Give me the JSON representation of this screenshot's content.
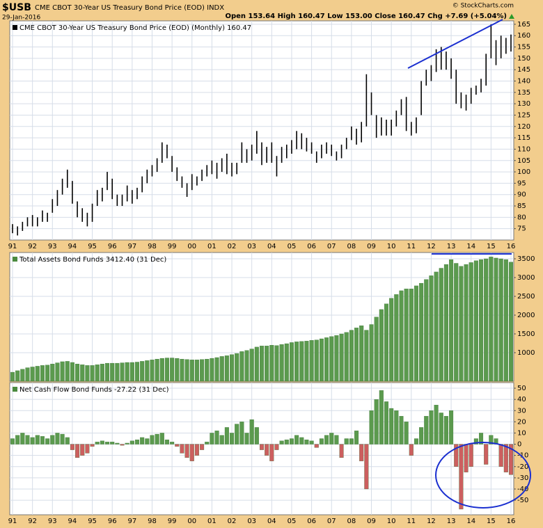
{
  "header": {
    "symbol": "$USB",
    "description": "CME CBOT 30-Year US Treasury Bond Price (EOD) INDX",
    "date": "29-Jan-2016",
    "quote": "Open 153.64 High 160.47 Low 153.00 Close 160.47 Chg +7.69 (+5.04%)",
    "credit": "© StockCharts.com"
  },
  "chart_data": [
    {
      "type": "ohlc",
      "title": "CME CBOT 30-Year US Treasury Bond Price (EOD) (Monthly) 160.47",
      "color": "#000000",
      "x": [
        1991,
        1991.25,
        1991.5,
        1991.75,
        1992,
        1992.25,
        1992.5,
        1992.75,
        1993,
        1993.25,
        1993.5,
        1993.75,
        1994,
        1994.25,
        1994.5,
        1994.75,
        1995,
        1995.25,
        1995.5,
        1995.75,
        1996,
        1996.25,
        1996.5,
        1996.75,
        1997,
        1997.25,
        1997.5,
        1997.75,
        1998,
        1998.25,
        1998.5,
        1998.75,
        1999,
        1999.25,
        1999.5,
        1999.75,
        2000,
        2000.25,
        2000.5,
        2000.75,
        2001,
        2001.25,
        2001.5,
        2001.75,
        2002,
        2002.25,
        2002.5,
        2002.75,
        2003,
        2003.25,
        2003.5,
        2003.75,
        2004,
        2004.25,
        2004.5,
        2004.75,
        2005,
        2005.25,
        2005.5,
        2005.75,
        2006,
        2006.25,
        2006.5,
        2006.75,
        2007,
        2007.25,
        2007.5,
        2007.75,
        2008,
        2008.25,
        2008.5,
        2008.75,
        2009,
        2009.25,
        2009.5,
        2009.75,
        2010,
        2010.25,
        2010.5,
        2010.75,
        2011,
        2011.25,
        2011.5,
        2011.75,
        2012,
        2012.25,
        2012.5,
        2012.75,
        2013,
        2013.25,
        2013.5,
        2013.75,
        2014,
        2014.25,
        2014.5,
        2014.75,
        2015,
        2015.25,
        2015.5,
        2015.75,
        2016
      ],
      "low": [
        73,
        72,
        74,
        76,
        76,
        76,
        78,
        78,
        82,
        85,
        90,
        93,
        86,
        80,
        78,
        76,
        78,
        85,
        87,
        92,
        88,
        85,
        85,
        87,
        86,
        88,
        91,
        95,
        98,
        100,
        104,
        106,
        100,
        96,
        93,
        89,
        92,
        94,
        96,
        98,
        99,
        97,
        100,
        99,
        98,
        99,
        104,
        104,
        105,
        108,
        103,
        104,
        104,
        98,
        104,
        106,
        108,
        110,
        110,
        109,
        108,
        104,
        106,
        108,
        107,
        105,
        106,
        110,
        114,
        112,
        113,
        120,
        125,
        115,
        116,
        116,
        116,
        120,
        125,
        118,
        116,
        117,
        125,
        138,
        140,
        144,
        145,
        145,
        141,
        130,
        128,
        127,
        130,
        134,
        135,
        138,
        150,
        147,
        150,
        152,
        153
      ],
      "high": [
        77,
        76,
        78,
        80,
        81,
        80,
        83,
        82,
        88,
        92,
        97,
        101,
        96,
        87,
        84,
        82,
        86,
        92,
        93,
        100,
        97,
        90,
        90,
        94,
        92,
        93,
        98,
        101,
        103,
        106,
        113,
        112,
        107,
        102,
        98,
        95,
        99,
        98,
        101,
        103,
        105,
        104,
        106,
        108,
        104,
        104,
        113,
        110,
        112,
        118,
        113,
        111,
        113,
        107,
        111,
        112,
        114,
        118,
        117,
        115,
        113,
        109,
        112,
        113,
        112,
        109,
        112,
        115,
        120,
        119,
        122,
        143,
        135,
        125,
        124,
        123,
        123,
        127,
        132,
        133,
        122,
        124,
        140,
        145,
        147,
        154,
        155,
        153,
        150,
        145,
        135,
        134,
        137,
        138,
        141,
        152,
        165,
        158,
        160,
        159,
        160.47
      ],
      "xlim": [
        1990.86,
        2016.14
      ],
      "ylim": [
        70,
        166.5
      ],
      "yticks": [
        75,
        80,
        85,
        90,
        95,
        100,
        105,
        110,
        115,
        120,
        125,
        130,
        135,
        140,
        145,
        150,
        155,
        160,
        165
      ],
      "xticks": [
        {
          "value": 1991,
          "label": "91"
        },
        {
          "value": 1992,
          "label": "92"
        },
        {
          "value": 1993,
          "label": "93"
        },
        {
          "value": 1994,
          "label": "94"
        },
        {
          "value": 1995,
          "label": "95"
        },
        {
          "value": 1996,
          "label": "96"
        },
        {
          "value": 1997,
          "label": "97"
        },
        {
          "value": 1998,
          "label": "98"
        },
        {
          "value": 1999,
          "label": "99"
        },
        {
          "value": 2000,
          "label": "00"
        },
        {
          "value": 2001,
          "label": "01"
        },
        {
          "value": 2002,
          "label": "02"
        },
        {
          "value": 2003,
          "label": "03"
        },
        {
          "value": 2004,
          "label": "04"
        },
        {
          "value": 2005,
          "label": "05"
        },
        {
          "value": 2006,
          "label": "06"
        },
        {
          "value": 2007,
          "label": "07"
        },
        {
          "value": 2008,
          "label": "08"
        },
        {
          "value": 2009,
          "label": "09"
        },
        {
          "value": 2010,
          "label": "10"
        },
        {
          "value": 2011,
          "label": "11"
        },
        {
          "value": 2012,
          "label": "12"
        },
        {
          "value": 2013,
          "label": "13"
        },
        {
          "value": 2014,
          "label": "14"
        },
        {
          "value": 2015,
          "label": "15"
        },
        {
          "value": 2016,
          "label": "16"
        }
      ]
    },
    {
      "type": "bar",
      "title": "Total Assets Bond Funds 3412.40 (31 Dec)",
      "color": "#5b9a4e",
      "x": [
        1991,
        1991.25,
        1991.5,
        1991.75,
        1992,
        1992.25,
        1992.5,
        1992.75,
        1993,
        1993.25,
        1993.5,
        1993.75,
        1994,
        1994.25,
        1994.5,
        1994.75,
        1995,
        1995.25,
        1995.5,
        1995.75,
        1996,
        1996.25,
        1996.5,
        1996.75,
        1997,
        1997.25,
        1997.5,
        1997.75,
        1998,
        1998.25,
        1998.5,
        1998.75,
        1999,
        1999.25,
        1999.5,
        1999.75,
        2000,
        2000.25,
        2000.5,
        2000.75,
        2001,
        2001.25,
        2001.5,
        2001.75,
        2002,
        2002.25,
        2002.5,
        2002.75,
        2003,
        2003.25,
        2003.5,
        2003.75,
        2004,
        2004.25,
        2004.5,
        2004.75,
        2005,
        2005.25,
        2005.5,
        2005.75,
        2006,
        2006.25,
        2006.5,
        2006.75,
        2007,
        2007.25,
        2007.5,
        2007.75,
        2008,
        2008.25,
        2008.5,
        2008.75,
        2009,
        2009.25,
        2009.5,
        2009.75,
        2010,
        2010.25,
        2010.5,
        2010.75,
        2011,
        2011.25,
        2011.5,
        2011.75,
        2012,
        2012.25,
        2012.5,
        2012.75,
        2013,
        2013.25,
        2013.5,
        2013.75,
        2014,
        2014.25,
        2014.5,
        2014.75,
        2015,
        2015.25,
        2015.5,
        2015.75,
        2016
      ],
      "values": [
        480,
        520,
        560,
        600,
        620,
        640,
        660,
        670,
        700,
        730,
        760,
        770,
        740,
        700,
        680,
        660,
        660,
        680,
        700,
        720,
        720,
        720,
        730,
        740,
        740,
        750,
        770,
        790,
        810,
        830,
        850,
        860,
        860,
        850,
        830,
        820,
        810,
        810,
        820,
        830,
        850,
        870,
        900,
        920,
        950,
        980,
        1030,
        1060,
        1100,
        1150,
        1180,
        1180,
        1200,
        1190,
        1220,
        1240,
        1270,
        1290,
        1300,
        1310,
        1330,
        1340,
        1370,
        1400,
        1430,
        1460,
        1500,
        1540,
        1600,
        1660,
        1720,
        1600,
        1750,
        1950,
        2150,
        2300,
        2450,
        2550,
        2650,
        2700,
        2700,
        2780,
        2850,
        2950,
        3050,
        3150,
        3250,
        3350,
        3480,
        3380,
        3300,
        3350,
        3400,
        3450,
        3480,
        3500,
        3550,
        3520,
        3500,
        3480,
        3412.4
      ],
      "xlim": [
        1990.86,
        2016.14
      ],
      "ylim": [
        240,
        3667
      ],
      "yticks": [
        1000,
        1500,
        2000,
        2500,
        3000,
        3500
      ]
    },
    {
      "type": "bar",
      "title": "Net Cash Flow Bond Funds -27.22 (31 Dec)",
      "color": "#5b9a4e",
      "negative_color": "#cc5f5f",
      "x": [
        1991,
        1991.25,
        1991.5,
        1991.75,
        1992,
        1992.25,
        1992.5,
        1992.75,
        1993,
        1993.25,
        1993.5,
        1993.75,
        1994,
        1994.25,
        1994.5,
        1994.75,
        1995,
        1995.25,
        1995.5,
        1995.75,
        1996,
        1996.25,
        1996.5,
        1996.75,
        1997,
        1997.25,
        1997.5,
        1997.75,
        1998,
        1998.25,
        1998.5,
        1998.75,
        1999,
        1999.25,
        1999.5,
        1999.75,
        2000,
        2000.25,
        2000.5,
        2000.75,
        2001,
        2001.25,
        2001.5,
        2001.75,
        2002,
        2002.25,
        2002.5,
        2002.75,
        2003,
        2003.25,
        2003.5,
        2003.75,
        2004,
        2004.25,
        2004.5,
        2004.75,
        2005,
        2005.25,
        2005.5,
        2005.75,
        2006,
        2006.25,
        2006.5,
        2006.75,
        2007,
        2007.25,
        2007.5,
        2007.75,
        2008,
        2008.25,
        2008.5,
        2008.75,
        2009,
        2009.25,
        2009.5,
        2009.75,
        2010,
        2010.25,
        2010.5,
        2010.75,
        2011,
        2011.25,
        2011.5,
        2011.75,
        2012,
        2012.25,
        2012.5,
        2012.75,
        2013,
        2013.25,
        2013.5,
        2013.75,
        2014,
        2014.25,
        2014.5,
        2014.75,
        2015,
        2015.25,
        2015.5,
        2015.75,
        2016
      ],
      "values": [
        5,
        8,
        10,
        8,
        6,
        8,
        7,
        5,
        8,
        10,
        9,
        6,
        -5,
        -12,
        -10,
        -8,
        -2,
        2,
        3,
        2,
        2,
        1,
        -1,
        1,
        3,
        4,
        6,
        5,
        8,
        9,
        10,
        4,
        2,
        -2,
        -8,
        -12,
        -15,
        -10,
        -5,
        2,
        10,
        12,
        8,
        15,
        10,
        18,
        20,
        10,
        22,
        15,
        -5,
        -10,
        -15,
        -5,
        3,
        4,
        5,
        8,
        6,
        4,
        3,
        -3,
        5,
        8,
        10,
        8,
        -12,
        5,
        5,
        12,
        -15,
        -40,
        30,
        40,
        48,
        38,
        32,
        30,
        25,
        20,
        -10,
        5,
        15,
        25,
        30,
        35,
        28,
        25,
        30,
        -20,
        -58,
        -25,
        -20,
        5,
        10,
        -18,
        8,
        5,
        -20,
        -25,
        -27.22
      ],
      "xlim": [
        1990.86,
        2016.14
      ],
      "ylim": [
        -63,
        55
      ],
      "yticks": [
        -50,
        -40,
        -30,
        -20,
        -10,
        0,
        10,
        20,
        30,
        40,
        50
      ],
      "xticks": [
        {
          "value": 1991,
          "label": "91"
        },
        {
          "value": 1992,
          "label": "92"
        },
        {
          "value": 1993,
          "label": "93"
        },
        {
          "value": 1994,
          "label": "94"
        },
        {
          "value": 1995,
          "label": "95"
        },
        {
          "value": 1996,
          "label": "96"
        },
        {
          "value": 1997,
          "label": "97"
        },
        {
          "value": 1998,
          "label": "98"
        },
        {
          "value": 1999,
          "label": "99"
        },
        {
          "value": 2000,
          "label": "00"
        },
        {
          "value": 2001,
          "label": "01"
        },
        {
          "value": 2002,
          "label": "02"
        },
        {
          "value": 2003,
          "label": "03"
        },
        {
          "value": 2004,
          "label": "04"
        },
        {
          "value": 2005,
          "label": "05"
        },
        {
          "value": 2006,
          "label": "06"
        },
        {
          "value": 2007,
          "label": "07"
        },
        {
          "value": 2008,
          "label": "08"
        },
        {
          "value": 2009,
          "label": "09"
        },
        {
          "value": 2010,
          "label": "10"
        },
        {
          "value": 2011,
          "label": "11"
        },
        {
          "value": 2012,
          "label": "12"
        },
        {
          "value": 2013,
          "label": "13"
        },
        {
          "value": 2014,
          "label": "14"
        },
        {
          "value": 2015,
          "label": "15"
        },
        {
          "value": 2016,
          "label": "16"
        }
      ]
    }
  ]
}
